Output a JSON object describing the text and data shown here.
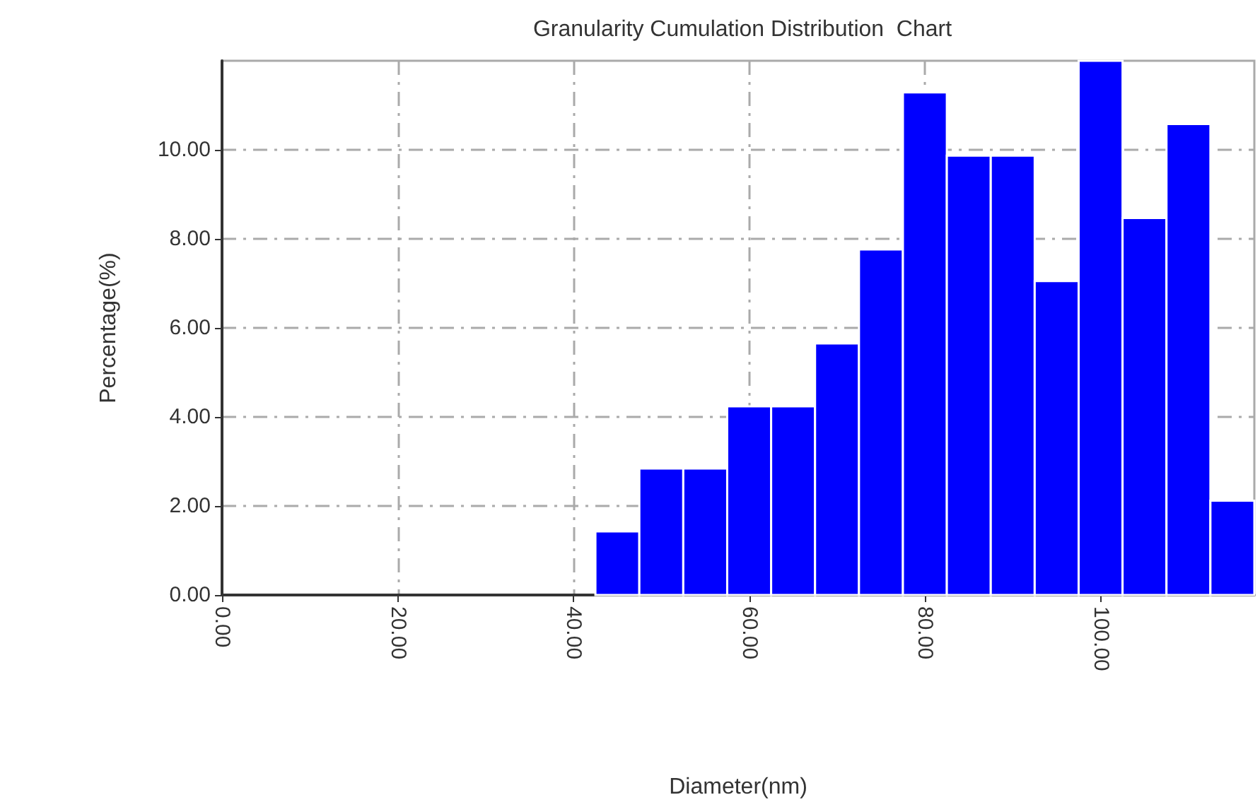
{
  "chart_data": {
    "type": "histogram",
    "title": "Granularity Cumulation Distribution  Chart",
    "xlabel": "Diameter(nm)",
    "ylabel": "Percentage(%)",
    "bins": [
      42.5,
      47.5,
      52.5,
      57.5,
      62.5,
      67.5,
      72.5,
      77.5,
      82.5,
      87.5,
      92.5,
      97.5,
      102.5,
      107.5,
      112.5,
      117.5
    ],
    "values": [
      1.43,
      2.84,
      2.84,
      4.24,
      4.24,
      5.65,
      7.76,
      11.29,
      9.87,
      9.87,
      7.05,
      12.0,
      8.47,
      10.58,
      2.12
    ],
    "color": "#0000ff",
    "xlim": [
      0,
      117.5
    ],
    "xticks": [
      {
        "value": 0,
        "label": "0.00"
      },
      {
        "value": 20,
        "label": "20.00"
      },
      {
        "value": 40,
        "label": "40.00"
      },
      {
        "value": 60,
        "label": "60.00"
      },
      {
        "value": 80,
        "label": "80.00"
      },
      {
        "value": 100,
        "label": "100.00"
      }
    ],
    "ylim": [
      0,
      12
    ],
    "yticks": [
      {
        "value": 0,
        "label": "0.00"
      },
      {
        "value": 2,
        "label": "2.00"
      },
      {
        "value": 4,
        "label": "4.00"
      },
      {
        "value": 6,
        "label": "6.00"
      },
      {
        "value": 8,
        "label": "8.00"
      },
      {
        "value": 10,
        "label": "10.00"
      }
    ],
    "grid": true
  }
}
